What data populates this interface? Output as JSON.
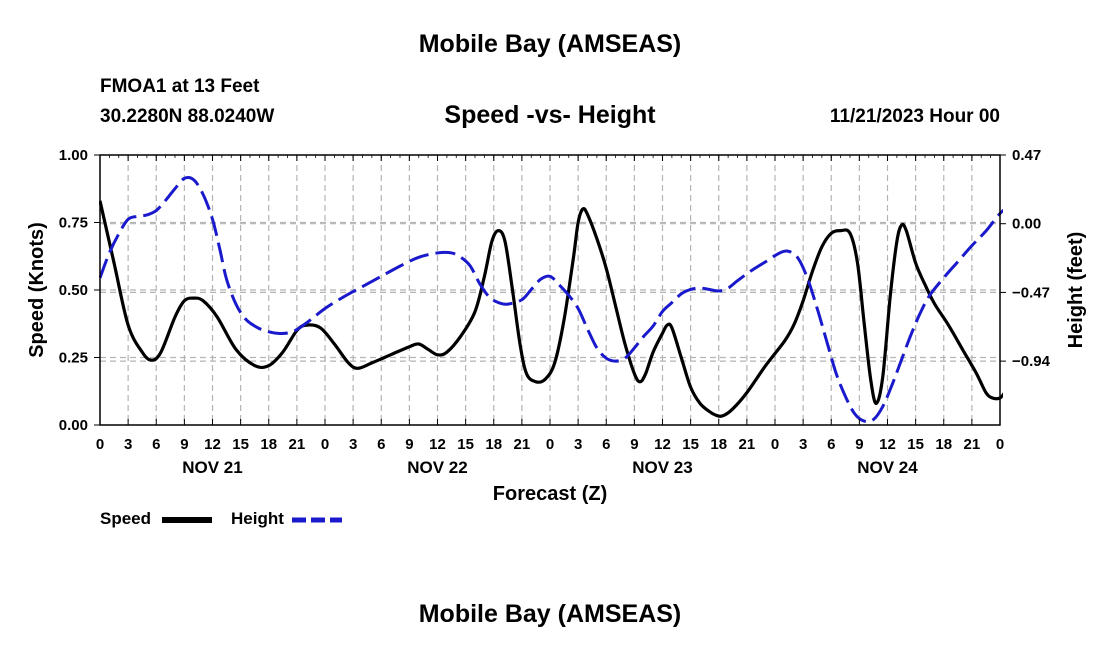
{
  "header": {
    "title_top": "Mobile Bay (AMSEAS)",
    "title_bottom": "Mobile Bay (AMSEAS)",
    "station": "FMOA1 at 13 Feet",
    "coords": "30.2280N  88.0240W",
    "subtitle": "Speed -vs- Height",
    "datetime": "11/21/2023 Hour 00"
  },
  "legend": {
    "speed_label": "Speed",
    "height_label": "Height"
  },
  "colors": {
    "speed": "#000000",
    "height": "#1a1acc",
    "grid": "#b4b4b4"
  },
  "chart_data": {
    "type": "line",
    "xlabel": "Forecast (Z)",
    "ylabel_left": "Speed (Knots)",
    "ylabel_right": "Height (feet)",
    "x_unit": "forecast hour",
    "xlim": [
      0,
      96
    ],
    "ylim_left": [
      0.0,
      1.0
    ],
    "ylim_right": [
      -1.377,
      0.47
    ],
    "left_ticks": [
      "0.00",
      "0.25",
      "0.50",
      "0.75",
      "1.00"
    ],
    "left_tick_values": [
      0.0,
      0.25,
      0.5,
      0.75,
      1.0
    ],
    "right_ticks": [
      "0.47",
      "0.00",
      "−0.47",
      "−0.94"
    ],
    "right_tick_values": [
      0.47,
      0.0,
      -0.47,
      -0.94
    ],
    "x_tick_labels": [
      "0",
      "3",
      "6",
      "9",
      "12",
      "15",
      "18",
      "21",
      "0",
      "3",
      "6",
      "9",
      "12",
      "15",
      "18",
      "21",
      "0",
      "3",
      "6",
      "9",
      "12",
      "15",
      "18",
      "21",
      "0",
      "3",
      "6",
      "9",
      "12",
      "15",
      "18",
      "21",
      "0"
    ],
    "x_tick_hours": [
      0,
      3,
      6,
      9,
      12,
      15,
      18,
      21,
      24,
      27,
      30,
      33,
      36,
      39,
      42,
      45,
      48,
      51,
      54,
      57,
      60,
      63,
      66,
      69,
      72,
      75,
      78,
      81,
      84,
      87,
      90,
      93,
      96
    ],
    "day_labels": [
      {
        "label": "NOV 21",
        "hour": 12
      },
      {
        "label": "NOV 22",
        "hour": 36
      },
      {
        "label": "NOV 23",
        "hour": 60
      },
      {
        "label": "NOV 24",
        "hour": 84
      }
    ],
    "series": [
      {
        "name": "Speed",
        "axis": "left",
        "style": "solid",
        "points": [
          [
            0,
            0.83
          ],
          [
            1.5,
            0.6
          ],
          [
            3,
            0.37
          ],
          [
            4.5,
            0.27
          ],
          [
            5.5,
            0.24
          ],
          [
            6.5,
            0.27
          ],
          [
            8,
            0.4
          ],
          [
            9,
            0.46
          ],
          [
            10,
            0.47
          ],
          [
            11,
            0.46
          ],
          [
            12.5,
            0.4
          ],
          [
            14.5,
            0.28
          ],
          [
            16.5,
            0.22
          ],
          [
            18,
            0.22
          ],
          [
            19.5,
            0.27
          ],
          [
            21,
            0.35
          ],
          [
            22,
            0.37
          ],
          [
            23.5,
            0.36
          ],
          [
            25,
            0.3
          ],
          [
            26.5,
            0.23
          ],
          [
            27.5,
            0.21
          ],
          [
            29,
            0.23
          ],
          [
            31,
            0.26
          ],
          [
            33,
            0.29
          ],
          [
            34,
            0.3
          ],
          [
            35,
            0.28
          ],
          [
            36,
            0.26
          ],
          [
            37,
            0.27
          ],
          [
            38.5,
            0.33
          ],
          [
            40,
            0.42
          ],
          [
            41,
            0.55
          ],
          [
            41.8,
            0.68
          ],
          [
            42.5,
            0.72
          ],
          [
            43.2,
            0.68
          ],
          [
            44,
            0.5
          ],
          [
            44.8,
            0.3
          ],
          [
            45.5,
            0.19
          ],
          [
            46.5,
            0.16
          ],
          [
            47.5,
            0.17
          ],
          [
            48.5,
            0.23
          ],
          [
            49.5,
            0.39
          ],
          [
            50.5,
            0.62
          ],
          [
            51,
            0.75
          ],
          [
            51.5,
            0.8
          ],
          [
            52,
            0.78
          ],
          [
            53,
            0.69
          ],
          [
            54,
            0.58
          ],
          [
            55,
            0.44
          ],
          [
            56,
            0.3
          ],
          [
            57,
            0.19
          ],
          [
            57.6,
            0.16
          ],
          [
            58.2,
            0.19
          ],
          [
            59,
            0.27
          ],
          [
            60,
            0.34
          ],
          [
            60.5,
            0.37
          ],
          [
            61,
            0.36
          ],
          [
            62,
            0.25
          ],
          [
            63,
            0.14
          ],
          [
            64,
            0.08
          ],
          [
            65,
            0.05
          ],
          [
            65.8,
            0.035
          ],
          [
            66.5,
            0.035
          ],
          [
            67.5,
            0.06
          ],
          [
            69,
            0.12
          ],
          [
            71,
            0.22
          ],
          [
            73,
            0.31
          ],
          [
            74,
            0.37
          ],
          [
            75,
            0.46
          ],
          [
            76,
            0.57
          ],
          [
            77,
            0.66
          ],
          [
            78,
            0.71
          ],
          [
            79,
            0.72
          ],
          [
            80,
            0.71
          ],
          [
            80.8,
            0.6
          ],
          [
            81.5,
            0.38
          ],
          [
            82.2,
            0.17
          ],
          [
            82.8,
            0.08
          ],
          [
            83.5,
            0.18
          ],
          [
            84.3,
            0.48
          ],
          [
            85,
            0.68
          ],
          [
            85.5,
            0.74
          ],
          [
            86,
            0.72
          ],
          [
            87,
            0.6
          ],
          [
            88,
            0.52
          ],
          [
            89,
            0.45
          ],
          [
            90.5,
            0.37
          ],
          [
            92,
            0.28
          ],
          [
            93.5,
            0.19
          ],
          [
            94.5,
            0.12
          ],
          [
            95.2,
            0.1
          ],
          [
            96,
            0.1
          ],
          [
            96.5,
            0.12
          ]
        ]
      },
      {
        "name": "Height",
        "axis": "right",
        "style": "dashed",
        "points": [
          [
            0,
            -0.37
          ],
          [
            1,
            -0.2
          ],
          [
            2,
            -0.07
          ],
          [
            3,
            0.03
          ],
          [
            4,
            0.05
          ],
          [
            5,
            0.06
          ],
          [
            6,
            0.09
          ],
          [
            7,
            0.16
          ],
          [
            8,
            0.24
          ],
          [
            9,
            0.31
          ],
          [
            10,
            0.3
          ],
          [
            11,
            0.2
          ],
          [
            12,
            0.03
          ],
          [
            12.8,
            -0.18
          ],
          [
            13.5,
            -0.38
          ],
          [
            14.5,
            -0.55
          ],
          [
            15.5,
            -0.65
          ],
          [
            16.5,
            -0.7
          ],
          [
            17.5,
            -0.73
          ],
          [
            19,
            -0.75
          ],
          [
            20.5,
            -0.74
          ],
          [
            22,
            -0.68
          ],
          [
            24,
            -0.58
          ],
          [
            26,
            -0.5
          ],
          [
            28,
            -0.43
          ],
          [
            30,
            -0.36
          ],
          [
            32,
            -0.29
          ],
          [
            34,
            -0.23
          ],
          [
            36,
            -0.2
          ],
          [
            37.5,
            -0.2
          ],
          [
            38.5,
            -0.23
          ],
          [
            39.5,
            -0.29
          ],
          [
            40.5,
            -0.41
          ],
          [
            41.5,
            -0.5
          ],
          [
            42.5,
            -0.54
          ],
          [
            43.5,
            -0.55
          ],
          [
            45,
            -0.52
          ],
          [
            46,
            -0.45
          ],
          [
            47,
            -0.38
          ],
          [
            48,
            -0.36
          ],
          [
            49,
            -0.42
          ],
          [
            50,
            -0.49
          ],
          [
            51,
            -0.58
          ],
          [
            52,
            -0.72
          ],
          [
            53,
            -0.85
          ],
          [
            54,
            -0.92
          ],
          [
            55,
            -0.94
          ],
          [
            56,
            -0.92
          ],
          [
            57,
            -0.85
          ],
          [
            58,
            -0.77
          ],
          [
            59,
            -0.7
          ],
          [
            60,
            -0.6
          ],
          [
            61,
            -0.54
          ],
          [
            62,
            -0.48
          ],
          [
            63,
            -0.45
          ],
          [
            64,
            -0.44
          ],
          [
            65,
            -0.45
          ],
          [
            66,
            -0.46
          ],
          [
            67,
            -0.44
          ],
          [
            68,
            -0.39
          ],
          [
            69.5,
            -0.32
          ],
          [
            71,
            -0.26
          ],
          [
            72.5,
            -0.2
          ],
          [
            73.5,
            -0.19
          ],
          [
            74.5,
            -0.24
          ],
          [
            75.5,
            -0.38
          ],
          [
            76.5,
            -0.58
          ],
          [
            77.5,
            -0.8
          ],
          [
            78.5,
            -1.02
          ],
          [
            79.5,
            -1.18
          ],
          [
            80.5,
            -1.3
          ],
          [
            81.5,
            -1.35
          ],
          [
            82.5,
            -1.34
          ],
          [
            83.5,
            -1.25
          ],
          [
            84.5,
            -1.1
          ],
          [
            85.5,
            -0.93
          ],
          [
            86.5,
            -0.76
          ],
          [
            87.5,
            -0.61
          ],
          [
            88.5,
            -0.49
          ],
          [
            90,
            -0.37
          ],
          [
            91.5,
            -0.26
          ],
          [
            93,
            -0.15
          ],
          [
            94.5,
            -0.05
          ],
          [
            96,
            0.07
          ],
          [
            97,
            0.12
          ]
        ]
      }
    ]
  }
}
